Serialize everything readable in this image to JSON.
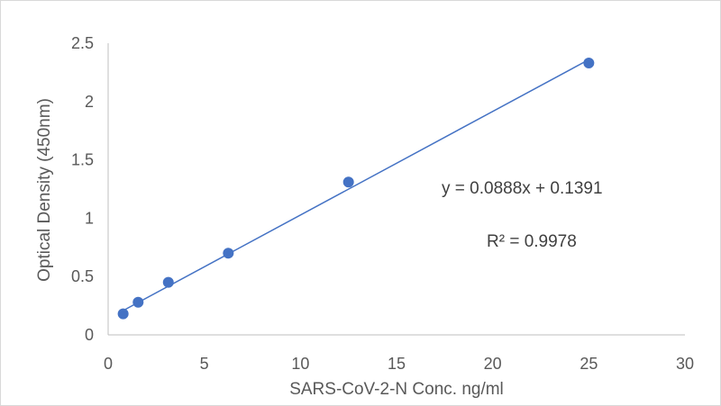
{
  "chart_data": {
    "type": "scatter",
    "xlabel": "SARS-CoV-2-N Conc. ng/ml",
    "ylabel": "Optical Density (450nm)",
    "xlim": [
      0,
      30
    ],
    "ylim": [
      0,
      2.5
    ],
    "x_ticks": [
      "0",
      "5",
      "10",
      "15",
      "20",
      "25",
      "30"
    ],
    "y_ticks": [
      "0",
      "0.5",
      "1",
      "1.5",
      "2",
      "2.5"
    ],
    "grid": false,
    "legend": "none",
    "points": [
      {
        "x": 0.78,
        "y": 0.18
      },
      {
        "x": 1.56,
        "y": 0.28
      },
      {
        "x": 3.13,
        "y": 0.45
      },
      {
        "x": 6.25,
        "y": 0.7
      },
      {
        "x": 12.5,
        "y": 1.31
      },
      {
        "x": 25,
        "y": 2.33
      }
    ],
    "trendline": {
      "type": "linear",
      "slope": 0.0888,
      "intercept": 0.1391,
      "x_range": [
        0.78,
        25
      ]
    },
    "annotations": {
      "equation": "y = 0.0888x + 0.1391",
      "r_squared": "R² = 0.9978"
    },
    "colors": {
      "marker": "#4472c4",
      "trendline": "#4472c4",
      "axis": "#bfbfbf",
      "text": "#595959"
    }
  }
}
